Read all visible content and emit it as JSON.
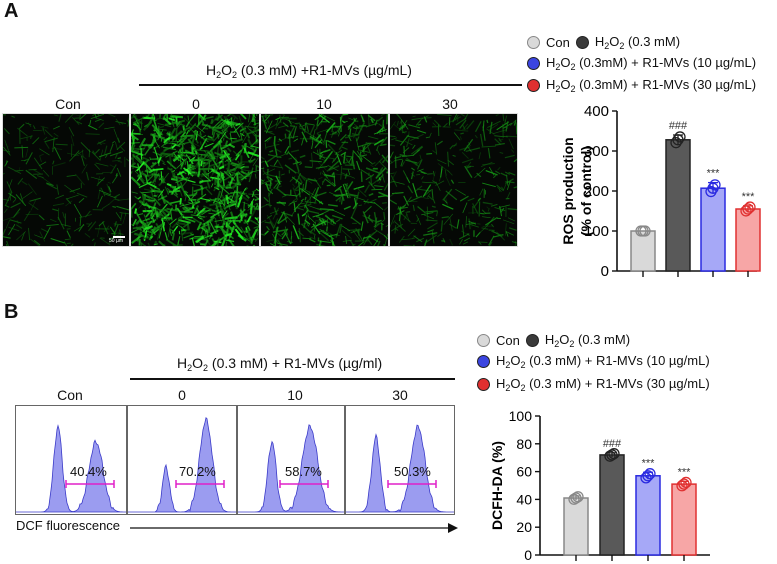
{
  "panelA": {
    "letter": "A",
    "treatment_label": "H2O2 (0.3 mM) +R1-MVs (µg/mL)",
    "columns": [
      "Con",
      "0",
      "10",
      "30"
    ],
    "scalebar": "50 µm",
    "legend": [
      {
        "label": "Con",
        "color": "#d9d9d9"
      },
      {
        "label": "H2O2 (0.3 mM)",
        "color": "#3a3a3a"
      },
      {
        "label": "H2O2 (0.3mM) + R1-MVs (10 µg/mL)",
        "color": "#3b45e0"
      },
      {
        "label": "H2O2 (0.3mM) + R1-MVs (30 µg/mL)",
        "color": "#e03030"
      }
    ]
  },
  "panelB": {
    "letter": "B",
    "treatment_label": "H2O2 (0.3 mM) + R1-MVs (µg/ml)",
    "columns": [
      "Con",
      "0",
      "10",
      "30"
    ],
    "percents": [
      "40.4%",
      "70.2%",
      "58.7%",
      "50.3%"
    ],
    "xaxis_label": "DCF fluorescence",
    "legend": [
      {
        "label": "Con",
        "color": "#d9d9d9"
      },
      {
        "label": "H2O2 (0.3 mM)",
        "color": "#3a3a3a"
      },
      {
        "label": "H2O2 (0.3 mM) + R1-MVs (10 µg/mL)",
        "color": "#3b45e0"
      },
      {
        "label": "H2O2 (0.3 mM) + R1-MVs (30 µg/mL)",
        "color": "#e03030"
      }
    ]
  },
  "chart_data": [
    {
      "type": "bar",
      "categories": [
        "Con",
        "H2O2 (0.3 mM)",
        "H2O2 (0.3mM) + R1-MVs (10 µg/mL)",
        "H2O2 (0.3mM) + R1-MVs (30 µg/mL)"
      ],
      "values": [
        100,
        328,
        207,
        155
      ],
      "errors": [
        0,
        12,
        14,
        8
      ],
      "annotations": [
        "",
        "###",
        "***",
        "***"
      ],
      "ylabel_line1": "ROS production",
      "ylabel_line2": "(% of control)",
      "ylim": [
        0,
        400
      ],
      "yticks": [
        0,
        100,
        200,
        300,
        400
      ],
      "colors": [
        "#d9d9d9",
        "#595959",
        "#a6a8f7",
        "#f7a6a6"
      ],
      "edge_colors": [
        "#888888",
        "#222222",
        "#2a2ae0",
        "#e03030"
      ]
    },
    {
      "type": "bar",
      "categories": [
        "Con",
        "H2O2 (0.3 mM)",
        "H2O2 (0.3 mM) + R1-MVs (10 µg/mL)",
        "H2O2 (0.3 mM) + R1-MVs (30 µg/mL)"
      ],
      "values": [
        41,
        72,
        57,
        51
      ],
      "errors": [
        1.5,
        1.5,
        2.5,
        2
      ],
      "annotations": [
        "",
        "###",
        "***",
        "***"
      ],
      "ylabel": "DCFH-DA (%)",
      "ylim": [
        0,
        100
      ],
      "yticks": [
        0,
        20,
        40,
        60,
        80,
        100
      ],
      "colors": [
        "#d9d9d9",
        "#595959",
        "#a6a8f7",
        "#f7a6a6"
      ],
      "edge_colors": [
        "#888888",
        "#222222",
        "#2a2ae0",
        "#e03030"
      ]
    }
  ]
}
